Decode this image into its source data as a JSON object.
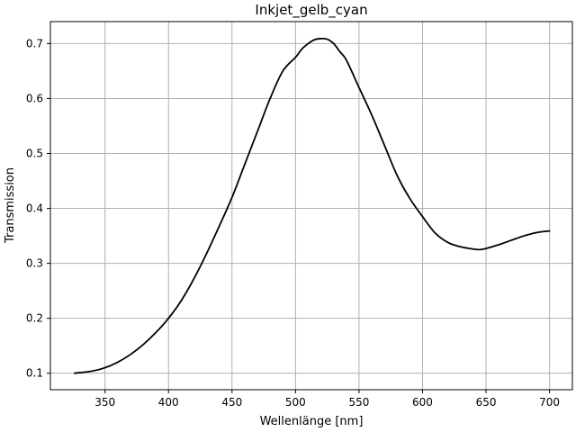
{
  "chart_data": {
    "type": "line",
    "title": "Inkjet_gelb_cyan",
    "xlabel": "Wellenlänge [nm]",
    "ylabel": "Transmission",
    "xlim": [
      307,
      718
    ],
    "ylim": [
      0.07,
      0.74
    ],
    "x_ticks": [
      350,
      400,
      450,
      500,
      550,
      600,
      650,
      700
    ],
    "y_ticks": [
      0.1,
      0.2,
      0.3,
      0.4,
      0.5,
      0.6,
      0.7
    ],
    "grid": true,
    "line_color": "#000000",
    "series": [
      {
        "x": [
          326,
          330,
          340,
          350,
          360,
          370,
          380,
          390,
          400,
          410,
          420,
          430,
          440,
          450,
          460,
          470,
          480,
          490,
          500,
          505,
          510,
          515,
          520,
          525,
          530,
          535,
          540,
          550,
          560,
          570,
          580,
          590,
          600,
          610,
          620,
          630,
          640,
          645,
          650,
          660,
          670,
          680,
          690,
          700
        ],
        "y": [
          0.1,
          0.101,
          0.104,
          0.11,
          0.12,
          0.134,
          0.152,
          0.174,
          0.2,
          0.232,
          0.272,
          0.318,
          0.368,
          0.42,
          0.48,
          0.54,
          0.6,
          0.65,
          0.675,
          0.69,
          0.7,
          0.707,
          0.709,
          0.708,
          0.7,
          0.685,
          0.67,
          0.62,
          0.57,
          0.515,
          0.46,
          0.418,
          0.385,
          0.355,
          0.338,
          0.33,
          0.326,
          0.325,
          0.327,
          0.334,
          0.342,
          0.35,
          0.356,
          0.359
        ]
      }
    ]
  }
}
